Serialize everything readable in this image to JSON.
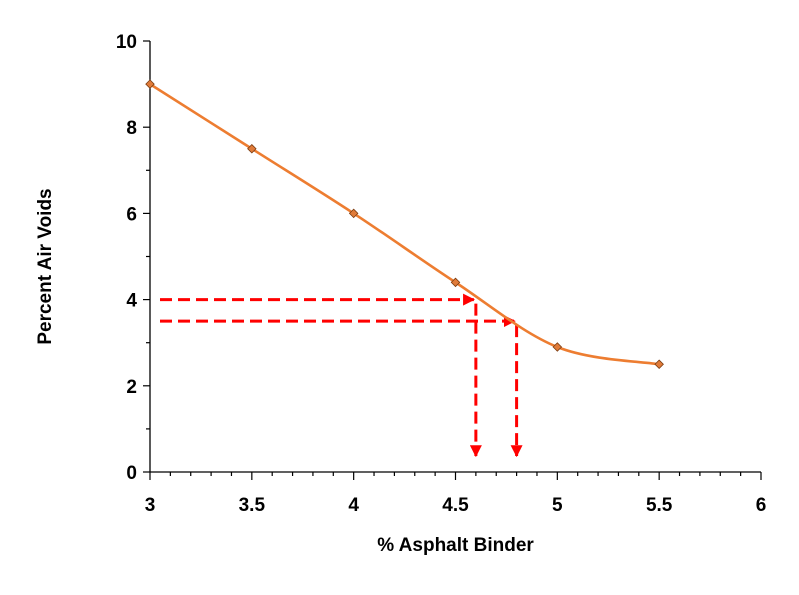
{
  "chart_data": {
    "type": "line",
    "title": "",
    "xlabel": "% Asphalt Binder",
    "ylabel": "Percent Air Voids",
    "xlim": [
      3,
      6
    ],
    "ylim": [
      0,
      10
    ],
    "x_ticks": [
      3,
      3.5,
      4,
      4.5,
      5,
      5.5,
      6
    ],
    "x_tick_labels": [
      "3",
      "3.5",
      "4",
      "4.5",
      "5",
      "5.5",
      "6"
    ],
    "y_ticks": [
      0,
      2,
      4,
      6,
      8,
      10
    ],
    "y_tick_labels": [
      "0",
      "2",
      "4",
      "6",
      "8",
      "10"
    ],
    "grid": false,
    "legend": "none",
    "series": [
      {
        "x": [
          3,
          3.5,
          4,
          4.5,
          5,
          5.5
        ],
        "y": [
          9.0,
          7.5,
          6.0,
          4.4,
          2.9,
          2.5
        ],
        "line_color": "#ED7D31",
        "marker": "diamond",
        "marker_color": "#E07B39"
      }
    ],
    "annotations": [
      {
        "type": "dashed-arrow-path",
        "from_y": 4.0,
        "to_x": 4.6,
        "color": "#FF0000"
      },
      {
        "type": "dashed-arrow-path",
        "from_y": 3.5,
        "to_x": 4.8,
        "color": "#FF0000"
      }
    ]
  }
}
